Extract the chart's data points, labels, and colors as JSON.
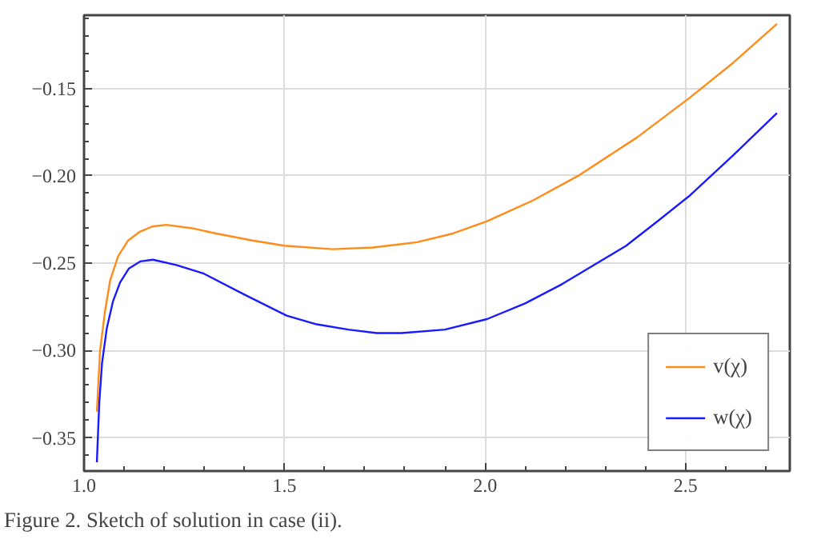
{
  "chart_data": {
    "type": "line",
    "xlim": [
      1.0,
      2.76
    ],
    "ylim": [
      -0.369,
      -0.108
    ],
    "xticks": [
      {
        "value": 1.0,
        "label": "1.0"
      },
      {
        "value": 1.5,
        "label": "1.5"
      },
      {
        "value": 2.0,
        "label": "2.0"
      },
      {
        "value": 2.5,
        "label": "2.5"
      }
    ],
    "yticks": [
      {
        "value": -0.35,
        "label": "−0.35"
      },
      {
        "value": -0.3,
        "label": "−0.30"
      },
      {
        "value": -0.25,
        "label": "−0.25"
      },
      {
        "value": -0.2,
        "label": "−0.20"
      },
      {
        "value": -0.15,
        "label": "−0.15"
      }
    ],
    "grid": true,
    "legend": "bottom right",
    "annotations": [
      "Figure 2. Sketch of solution in case (ii)."
    ],
    "series": [
      {
        "name": "v(χ)",
        "color": "#ff8c1a",
        "x": [
          1.032,
          1.04,
          1.052,
          1.065,
          1.085,
          1.11,
          1.139,
          1.17,
          1.205,
          1.27,
          1.33,
          1.42,
          1.5,
          1.62,
          1.72,
          1.83,
          1.92,
          2.005,
          2.12,
          2.232,
          2.379,
          2.512,
          2.62,
          2.728
        ],
        "values": [
          -0.335,
          -0.3,
          -0.278,
          -0.26,
          -0.246,
          -0.237,
          -0.232,
          -0.229,
          -0.228,
          -0.23,
          -0.233,
          -0.237,
          -0.24,
          -0.242,
          -0.241,
          -0.238,
          -0.233,
          -0.226,
          -0.214,
          -0.2,
          -0.178,
          -0.155,
          -0.135,
          -0.113
        ]
      },
      {
        "name": "w(χ)",
        "color": "#1a1aff",
        "x": [
          1.032,
          1.038,
          1.045,
          1.057,
          1.072,
          1.09,
          1.112,
          1.14,
          1.172,
          1.23,
          1.299,
          1.4,
          1.505,
          1.58,
          1.659,
          1.73,
          1.792,
          1.9,
          2.005,
          2.1,
          2.192,
          2.352,
          2.43,
          2.512,
          2.62,
          2.728
        ],
        "values": [
          -0.364,
          -0.33,
          -0.307,
          -0.287,
          -0.272,
          -0.261,
          -0.253,
          -0.249,
          -0.248,
          -0.251,
          -0.256,
          -0.268,
          -0.28,
          -0.285,
          -0.288,
          -0.29,
          -0.29,
          -0.288,
          -0.282,
          -0.273,
          -0.262,
          -0.24,
          -0.226,
          -0.211,
          -0.188,
          -0.164
        ]
      }
    ]
  }
}
